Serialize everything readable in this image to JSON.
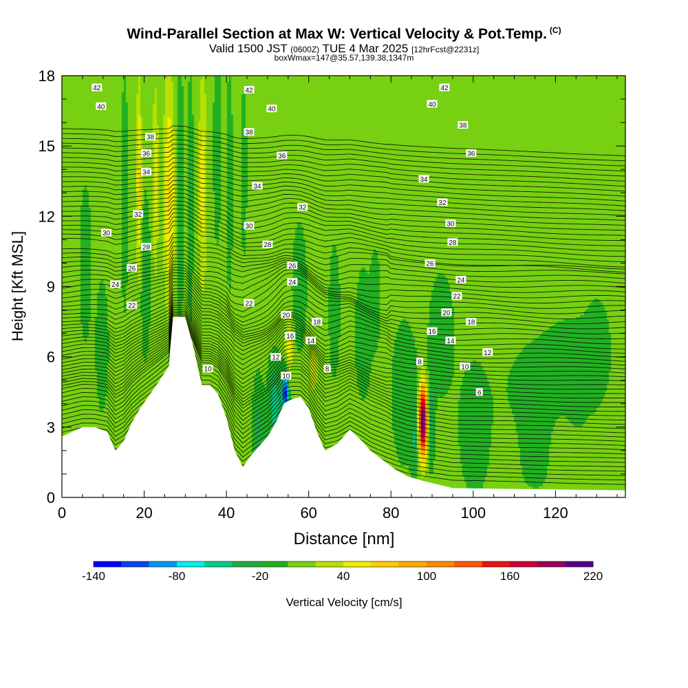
{
  "title": "Wind-Parallel Section at Max W: Vertical Velocity & Pot.Temp.",
  "title_mark": "(C)",
  "subtitle": {
    "valid": "Valid 1500 JST",
    "utc": "(0600Z)",
    "date": "TUE 4 Mar 2025",
    "run": "[12hrFcst@2231z]",
    "box": "boxWmax=147@35.57,139.38,1347m"
  },
  "chart_data": {
    "type": "heatmap",
    "xlabel": "Distance [nm]",
    "ylabel": "Height [Kft MSL]",
    "xlim": [
      0,
      137
    ],
    "ylim": [
      0,
      18
    ],
    "x_ticks": [
      0,
      20,
      40,
      60,
      80,
      100,
      120
    ],
    "y_ticks": [
      0,
      3,
      6,
      9,
      12,
      15,
      18
    ],
    "colorbar": {
      "label": "Vertical Velocity [cm/s]",
      "min": -140,
      "max": 220,
      "step": 20,
      "tick_labels": [
        -140,
        -80,
        -20,
        40,
        100,
        160,
        220
      ],
      "colors": [
        "#0000ff",
        "#0044ee",
        "#0099ee",
        "#00eeee",
        "#00cc88",
        "#22aa44",
        "#22b022",
        "#77d011",
        "#b8e000",
        "#f0ec00",
        "#ffcc00",
        "#ffaa00",
        "#ff8800",
        "#ff5500",
        "#ee1111",
        "#cc0033",
        "#990055",
        "#550088"
      ]
    },
    "background_w_cm_s": 5,
    "terrain": [
      {
        "x": 0,
        "h": 2.6
      },
      {
        "x": 5,
        "h": 3.0
      },
      {
        "x": 8,
        "h": 3.0
      },
      {
        "x": 11,
        "h": 2.8
      },
      {
        "x": 13,
        "h": 2.0
      },
      {
        "x": 15,
        "h": 2.4
      },
      {
        "x": 17,
        "h": 3.2
      },
      {
        "x": 19,
        "h": 3.8
      },
      {
        "x": 21,
        "h": 4.3
      },
      {
        "x": 23,
        "h": 4.8
      },
      {
        "x": 26,
        "h": 5.6
      },
      {
        "x": 27,
        "h": 7.7
      },
      {
        "x": 30,
        "h": 7.7
      },
      {
        "x": 32,
        "h": 6.4
      },
      {
        "x": 34,
        "h": 4.8
      },
      {
        "x": 36,
        "h": 4.8
      },
      {
        "x": 38,
        "h": 4.4
      },
      {
        "x": 40,
        "h": 3.4
      },
      {
        "x": 42,
        "h": 2.0
      },
      {
        "x": 44,
        "h": 1.3
      },
      {
        "x": 46,
        "h": 1.8
      },
      {
        "x": 48,
        "h": 2.2
      },
      {
        "x": 50,
        "h": 2.6
      },
      {
        "x": 52,
        "h": 3.2
      },
      {
        "x": 54,
        "h": 4.0
      },
      {
        "x": 56,
        "h": 4.2
      },
      {
        "x": 58,
        "h": 4.3
      },
      {
        "x": 60,
        "h": 3.8
      },
      {
        "x": 62,
        "h": 2.8
      },
      {
        "x": 64,
        "h": 2.0
      },
      {
        "x": 67,
        "h": 2.3
      },
      {
        "x": 70,
        "h": 2.9
      },
      {
        "x": 73,
        "h": 2.4
      },
      {
        "x": 75,
        "h": 2.0
      },
      {
        "x": 78,
        "h": 1.6
      },
      {
        "x": 81,
        "h": 1.2
      },
      {
        "x": 84,
        "h": 0.9
      },
      {
        "x": 88,
        "h": 0.7
      },
      {
        "x": 95,
        "h": 0.4
      },
      {
        "x": 137,
        "h": 0.3
      }
    ],
    "vertical_velocity_features": [
      {
        "x": 5.5,
        "z": 10.0,
        "wx": 1.4,
        "wz": 3.2,
        "w": -15
      },
      {
        "x": 9.5,
        "z": 6.5,
        "wx": 1.4,
        "wz": 2.5,
        "w": -18
      },
      {
        "x": 15.0,
        "z": 13.0,
        "wx": 0.7,
        "wz": 4.2,
        "w": -22
      },
      {
        "x": 18.5,
        "z": 13.5,
        "wx": 0.6,
        "wz": 4.0,
        "w": 60
      },
      {
        "x": 20.0,
        "z": 9.5,
        "wx": 1.0,
        "wz": 2.8,
        "w": -28
      },
      {
        "x": 22.5,
        "z": 13.5,
        "wx": 0.7,
        "wz": 4.0,
        "w": 42
      },
      {
        "x": 25.8,
        "z": 13.0,
        "wx": 1.3,
        "wz": 4.8,
        "w": 58
      },
      {
        "x": 28.5,
        "z": 13.0,
        "wx": 0.7,
        "wz": 4.5,
        "w": -30
      },
      {
        "x": 31.0,
        "z": 13.0,
        "wx": 0.6,
        "wz": 4.2,
        "w": -28
      },
      {
        "x": 34.0,
        "z": 13.5,
        "wx": 1.0,
        "wz": 4.5,
        "w": 45
      },
      {
        "x": 37.5,
        "z": 15.0,
        "wx": 0.8,
        "wz": 3.5,
        "w": -22
      },
      {
        "x": 40.5,
        "z": 13.5,
        "wx": 0.7,
        "wz": 4.0,
        "w": -20
      },
      {
        "x": 44.0,
        "z": 14.0,
        "wx": 0.7,
        "wz": 3.5,
        "w": -15
      },
      {
        "x": 47.5,
        "z": 3.0,
        "wx": 1.2,
        "wz": 1.8,
        "w": -35
      },
      {
        "x": 51.5,
        "z": 4.0,
        "wx": 1.4,
        "wz": 1.6,
        "w": -60
      },
      {
        "x": 54.0,
        "z": 4.5,
        "wx": 0.7,
        "wz": 0.9,
        "w": -135
      },
      {
        "x": 55.0,
        "z": 6.5,
        "wx": 0.8,
        "wz": 1.0,
        "w": 55
      },
      {
        "x": 61.0,
        "z": 5.5,
        "wx": 1.4,
        "wz": 1.2,
        "w": 25
      },
      {
        "x": 57.5,
        "z": 9.0,
        "wx": 1.6,
        "wz": 2.5,
        "w": -18
      },
      {
        "x": 66.0,
        "z": 8.0,
        "wx": 1.2,
        "wz": 2.5,
        "w": -18
      },
      {
        "x": 73.0,
        "z": 7.0,
        "wx": 1.8,
        "wz": 2.5,
        "w": -18
      },
      {
        "x": 76.0,
        "z": 8.5,
        "wx": 1.2,
        "wz": 2.0,
        "w": -15
      },
      {
        "x": 83.0,
        "z": 4.5,
        "wx": 3.0,
        "wz": 3.0,
        "w": -15
      },
      {
        "x": 85.5,
        "z": 2.5,
        "wx": 0.7,
        "wz": 2.0,
        "w": -45
      },
      {
        "x": 87.5,
        "z": 3.3,
        "wx": 1.0,
        "wz": 1.5,
        "w": 215
      },
      {
        "x": 89.5,
        "z": 3.5,
        "wx": 0.8,
        "wz": 1.8,
        "w": -40
      },
      {
        "x": 92.0,
        "z": 7.0,
        "wx": 3.0,
        "wz": 2.5,
        "w": -15
      },
      {
        "x": 100.0,
        "z": 3.0,
        "wx": 4.0,
        "wz": 3.0,
        "w": -12
      },
      {
        "x": 115.0,
        "z": 3.5,
        "wx": 8.0,
        "wz": 3.0,
        "w": -14
      },
      {
        "x": 124.0,
        "z": 5.5,
        "wx": 6.0,
        "wz": 2.0,
        "w": -14
      },
      {
        "x": 130.0,
        "z": 6.5,
        "wx": 3.0,
        "wz": 2.0,
        "w": -12
      },
      {
        "x": 108.0,
        "z": 2.0,
        "wx": 2.5,
        "wz": 1.5,
        "w": 15
      },
      {
        "x": 121.0,
        "z": 2.2,
        "wx": 2.5,
        "wz": 1.5,
        "w": 15
      }
    ],
    "theta_levels": [
      6,
      8,
      10,
      12,
      14,
      16,
      18,
      20,
      22,
      24,
      26,
      28,
      30,
      32,
      34,
      36,
      38,
      40,
      42
    ],
    "theta_label_points": [
      {
        "label": "42",
        "x": 8.5,
        "z": 17.5
      },
      {
        "label": "40",
        "x": 9.5,
        "z": 16.7
      },
      {
        "label": "38",
        "x": 21.5,
        "z": 15.4
      },
      {
        "label": "36",
        "x": 20.5,
        "z": 14.7
      },
      {
        "label": "34",
        "x": 20.5,
        "z": 13.9
      },
      {
        "label": "32",
        "x": 18.5,
        "z": 12.1
      },
      {
        "label": "30",
        "x": 10.8,
        "z": 11.3
      },
      {
        "label": "28",
        "x": 20.5,
        "z": 10.7
      },
      {
        "label": "26",
        "x": 17.0,
        "z": 9.8
      },
      {
        "label": "24",
        "x": 13.0,
        "z": 9.1
      },
      {
        "label": "22",
        "x": 17.0,
        "z": 8.2
      },
      {
        "label": "42",
        "x": 45.5,
        "z": 17.4
      },
      {
        "label": "40",
        "x": 51.0,
        "z": 16.6
      },
      {
        "label": "38",
        "x": 45.5,
        "z": 15.6
      },
      {
        "label": "36",
        "x": 53.5,
        "z": 14.6
      },
      {
        "label": "34",
        "x": 47.5,
        "z": 13.3
      },
      {
        "label": "32",
        "x": 58.5,
        "z": 12.4
      },
      {
        "label": "30",
        "x": 45.5,
        "z": 11.6
      },
      {
        "label": "28",
        "x": 50.0,
        "z": 10.8
      },
      {
        "label": "26",
        "x": 56.0,
        "z": 9.9
      },
      {
        "label": "24",
        "x": 56.0,
        "z": 9.2
      },
      {
        "label": "22",
        "x": 45.5,
        "z": 8.3
      },
      {
        "label": "20",
        "x": 54.5,
        "z": 7.8
      },
      {
        "label": "18",
        "x": 62.0,
        "z": 7.5
      },
      {
        "label": "16",
        "x": 55.5,
        "z": 6.9
      },
      {
        "label": "14",
        "x": 60.5,
        "z": 6.7
      },
      {
        "label": "12",
        "x": 52.0,
        "z": 6.0
      },
      {
        "label": "10",
        "x": 54.5,
        "z": 5.2
      },
      {
        "label": "10",
        "x": 35.5,
        "z": 5.5
      },
      {
        "label": "8",
        "x": 64.5,
        "z": 5.5
      },
      {
        "label": "42",
        "x": 93.0,
        "z": 17.5
      },
      {
        "label": "40",
        "x": 90.0,
        "z": 16.8
      },
      {
        "label": "38",
        "x": 97.5,
        "z": 15.9
      },
      {
        "label": "36",
        "x": 99.5,
        "z": 14.7
      },
      {
        "label": "34",
        "x": 88.0,
        "z": 13.6
      },
      {
        "label": "32",
        "x": 92.5,
        "z": 12.6
      },
      {
        "label": "30",
        "x": 94.5,
        "z": 11.7
      },
      {
        "label": "28",
        "x": 95.0,
        "z": 10.9
      },
      {
        "label": "26",
        "x": 89.5,
        "z": 10.0
      },
      {
        "label": "24",
        "x": 97.0,
        "z": 9.3
      },
      {
        "label": "22",
        "x": 96.0,
        "z": 8.6
      },
      {
        "label": "20",
        "x": 93.5,
        "z": 7.9
      },
      {
        "label": "18",
        "x": 99.5,
        "z": 7.5
      },
      {
        "label": "16",
        "x": 90.0,
        "z": 7.1
      },
      {
        "label": "14",
        "x": 94.5,
        "z": 6.7
      },
      {
        "label": "12",
        "x": 103.5,
        "z": 6.2
      },
      {
        "label": "10",
        "x": 98.0,
        "z": 5.6
      },
      {
        "label": "8",
        "x": 87.0,
        "z": 5.8
      },
      {
        "label": "6",
        "x": 101.5,
        "z": 4.5
      }
    ]
  }
}
